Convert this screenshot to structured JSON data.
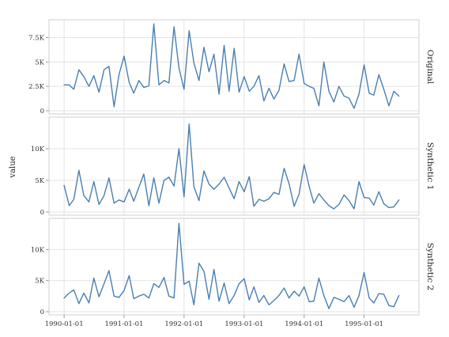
{
  "chart_data": {
    "type": "line",
    "ylabel": "value",
    "x_start": "1990-01-01",
    "x_step": "1 month",
    "x_ticks": [
      "1990-01-01",
      "1991-01-01",
      "1992-01-01",
      "1993-01-01",
      "1994-01-01",
      "1995-01-01"
    ],
    "x_range": [
      "1989-10-01",
      "1995-12-01"
    ],
    "line_color": "#4a7fb0",
    "grid": true,
    "facets": [
      {
        "label": "Original",
        "ylim": [
          0,
          9000
        ],
        "yticks": [
          0,
          2500,
          5000,
          7500
        ],
        "ytick_labels": [
          "0",
          "2.5K",
          "5K",
          "7.5K"
        ],
        "values": [
          2650,
          2650,
          2200,
          4200,
          3500,
          2500,
          3600,
          1900,
          4200,
          4550,
          400,
          3700,
          5600,
          2900,
          1800,
          3100,
          2400,
          2550,
          8900,
          2650,
          3100,
          2850,
          8600,
          4400,
          2200,
          8200,
          4900,
          3100,
          6500,
          4000,
          5800,
          1700,
          6700,
          2000,
          6400,
          1900,
          3500,
          2000,
          2500,
          3600,
          1000,
          2300,
          1200,
          2100,
          4800,
          3000,
          3100,
          5800,
          2800,
          2500,
          2300,
          500,
          5000,
          2000,
          900,
          2500,
          1500,
          1300,
          250,
          1700,
          4700,
          1800,
          1600,
          3700,
          2200,
          500,
          2000,
          1500
        ]
      },
      {
        "label": "Synthetic 1",
        "ylim": [
          0,
          14500
        ],
        "yticks": [
          0,
          5000,
          10000
        ],
        "ytick_labels": [
          "0",
          "5K",
          "10K"
        ],
        "values": [
          4200,
          1000,
          2000,
          6600,
          2600,
          1600,
          4800,
          1200,
          2600,
          5400,
          1400,
          1900,
          1600,
          3600,
          1700,
          3900,
          6000,
          1000,
          5400,
          1400,
          5000,
          5500,
          4100,
          10000,
          2400,
          13900,
          4000,
          1800,
          6500,
          4400,
          3600,
          4400,
          5500,
          3800,
          2100,
          4800,
          3200,
          5600,
          900,
          2000,
          1700,
          2100,
          3100,
          2800,
          6900,
          4500,
          900,
          2800,
          7500,
          4000,
          1400,
          2900,
          1900,
          1000,
          500,
          1200,
          2700,
          1800,
          500,
          4800,
          2300,
          2200,
          1100,
          3200,
          1300,
          700,
          800,
          1900
        ]
      },
      {
        "label": "Synthetic 2",
        "ylim": [
          0,
          14500
        ],
        "yticks": [
          0,
          5000,
          10000
        ],
        "ytick_labels": [
          "0",
          "5K",
          "10K"
        ],
        "values": [
          2200,
          3000,
          3500,
          1300,
          3000,
          1400,
          5400,
          2400,
          4500,
          6600,
          2500,
          2300,
          3400,
          5800,
          2100,
          2500,
          2800,
          2200,
          4500,
          3900,
          5500,
          2500,
          2200,
          14200,
          4400,
          4900,
          1100,
          7800,
          6500,
          2000,
          6800,
          1700,
          4600,
          1300,
          2600,
          4500,
          5300,
          1900,
          4000,
          1500,
          2600,
          1100,
          1800,
          2600,
          3800,
          2200,
          3300,
          2500,
          4000,
          1600,
          1700,
          5400,
          2600,
          500,
          2300,
          2000,
          1600,
          2600,
          700,
          2600,
          6300,
          2200,
          1400,
          2900,
          2800,
          1000,
          800,
          2600
        ]
      }
    ]
  }
}
